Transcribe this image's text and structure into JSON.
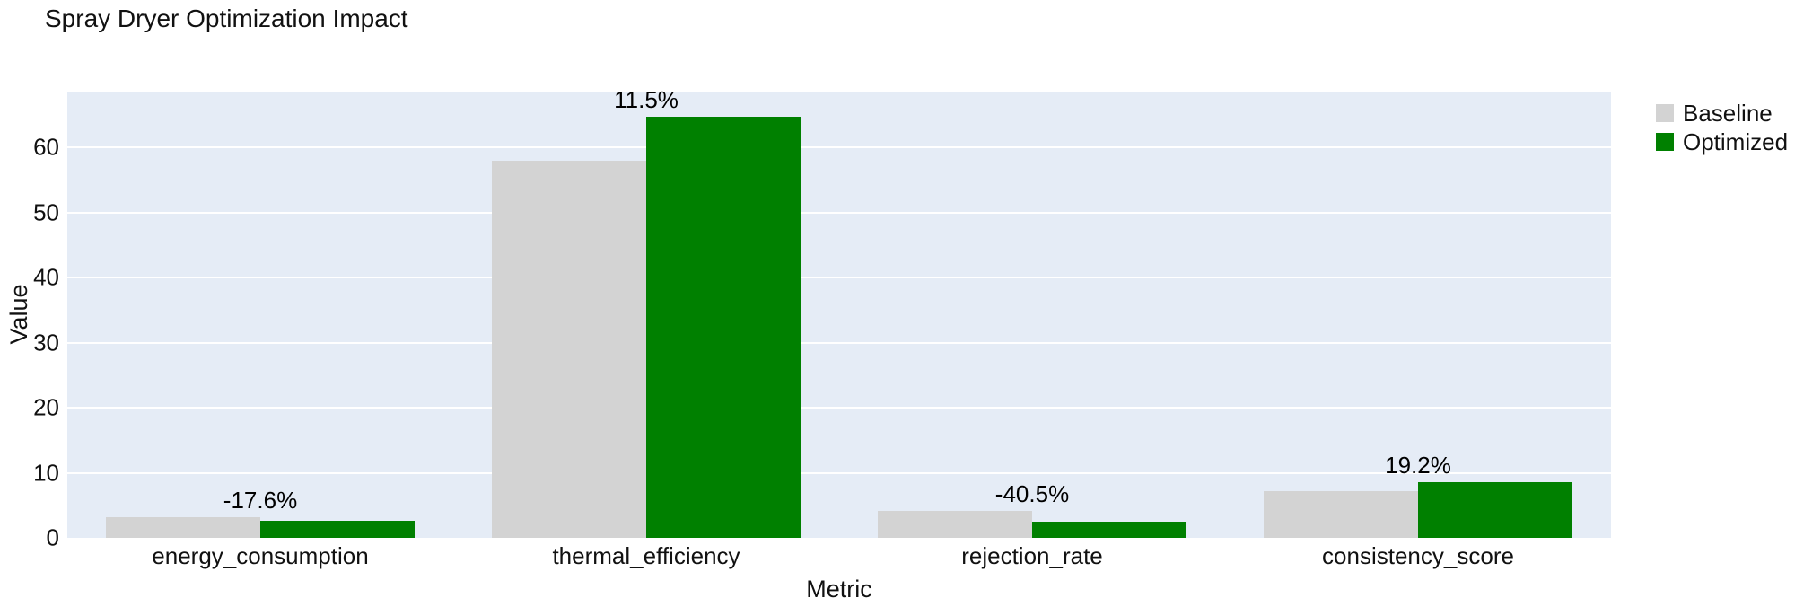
{
  "title": "Spray Dryer Optimization Impact",
  "chart_data": {
    "type": "bar",
    "title": "Spray Dryer Optimization Impact",
    "xlabel": "Metric",
    "ylabel": "Value",
    "categories": [
      "energy_consumption",
      "thermal_efficiency",
      "rejection_rate",
      "consistency_score"
    ],
    "series": [
      {
        "name": "Baseline",
        "color": "#d3d3d3",
        "values": [
          3.2,
          58.0,
          4.2,
          7.2
        ]
      },
      {
        "name": "Optimized",
        "color": "#008000",
        "values": [
          2.64,
          64.67,
          2.5,
          8.58
        ]
      }
    ],
    "bar_labels": [
      "-17.6%",
      "11.5%",
      "-40.5%",
      "19.2%"
    ],
    "yticks": [
      0,
      10,
      20,
      30,
      40,
      50,
      60
    ],
    "ylim": [
      0,
      68.6
    ],
    "grid": true,
    "grid_color": "#ffffff",
    "plot_bg": "#e5ecf6",
    "paper_bg": "#ffffff",
    "legend_position": "top-right-outside",
    "bargap": 0.2
  }
}
